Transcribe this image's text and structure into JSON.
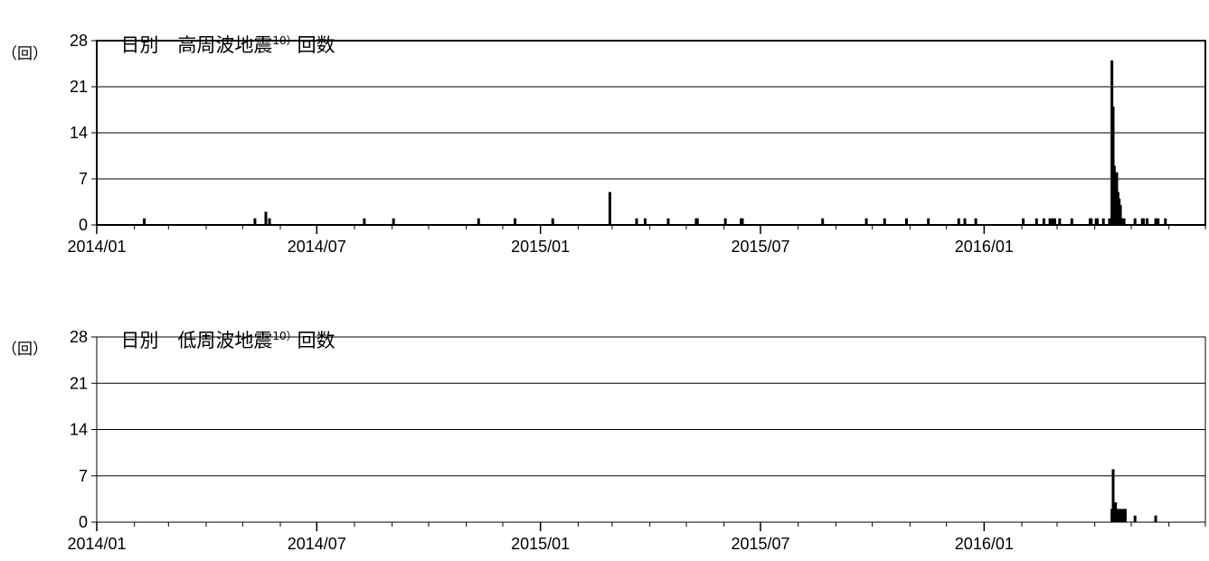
{
  "unit_label": "（回）",
  "chart_data": [
    {
      "type": "bar",
      "title": "日別　高周波地震",
      "title_ref": "10）",
      "title_suffix": "回数",
      "ylabel": "（回）",
      "ylim": [
        0,
        28
      ],
      "yticks": [
        "0",
        "7",
        "14",
        "21",
        "28"
      ],
      "xlim": [
        "2014-01-01",
        "2016-06-30"
      ],
      "xticks": [
        {
          "date": "2014-01-01",
          "label": "2014/01"
        },
        {
          "date": "2014-07-01",
          "label": "2014/07"
        },
        {
          "date": "2015-01-01",
          "label": "2015/01"
        },
        {
          "date": "2015-07-01",
          "label": "2015/07"
        },
        {
          "date": "2016-01-01",
          "label": "2016/01"
        }
      ],
      "grid": true,
      "x": [
        "2014-02-08",
        "2014-05-10",
        "2014-05-19",
        "2014-05-22",
        "2014-08-08",
        "2014-09-01",
        "2014-11-10",
        "2014-12-10",
        "2015-01-10",
        "2015-02-26",
        "2015-03-20",
        "2015-03-27",
        "2015-04-15",
        "2015-05-08",
        "2015-05-09",
        "2015-06-01",
        "2015-06-14",
        "2015-06-15",
        "2015-08-20",
        "2015-09-25",
        "2015-10-10",
        "2015-10-28",
        "2015-11-15",
        "2015-12-10",
        "2015-12-15",
        "2015-12-24",
        "2016-02-01",
        "2016-02-12",
        "2016-02-18",
        "2016-02-23",
        "2016-02-25",
        "2016-02-27",
        "2016-03-02",
        "2016-03-12",
        "2016-03-27",
        "2016-03-28",
        "2016-04-01",
        "2016-04-02",
        "2016-04-07",
        "2016-04-12",
        "2016-04-13",
        "2016-04-14",
        "2016-04-15",
        "2016-04-16",
        "2016-04-17",
        "2016-04-18",
        "2016-04-19",
        "2016-04-20",
        "2016-04-21",
        "2016-04-22",
        "2016-04-23",
        "2016-04-24",
        "2016-05-03",
        "2016-05-09",
        "2016-05-10",
        "2016-05-13",
        "2016-05-20",
        "2016-05-22",
        "2016-05-28"
      ],
      "values": [
        1,
        1,
        2,
        1,
        1,
        1,
        1,
        1,
        1,
        5,
        1,
        1,
        1,
        1,
        1,
        1,
        1,
        1,
        1,
        1,
        1,
        1,
        1,
        1,
        1,
        1,
        1,
        1,
        1,
        1,
        1,
        1,
        1,
        1,
        1,
        1,
        1,
        1,
        1,
        1,
        1,
        25,
        18,
        9,
        6,
        8,
        5,
        4,
        3,
        1,
        1,
        1,
        1,
        1,
        1,
        1,
        1,
        1,
        1
      ]
    },
    {
      "type": "bar",
      "title": "日別　低周波地震",
      "title_ref": "10）",
      "title_suffix": "回数",
      "ylabel": "（回）",
      "ylim": [
        0,
        28
      ],
      "yticks": [
        "0",
        "7",
        "14",
        "21",
        "28"
      ],
      "xlim": [
        "2014-01-01",
        "2016-06-30"
      ],
      "xticks": [
        {
          "date": "2014-01-01",
          "label": "2014/01"
        },
        {
          "date": "2014-07-01",
          "label": "2014/07"
        },
        {
          "date": "2015-01-01",
          "label": "2015/01"
        },
        {
          "date": "2015-07-01",
          "label": "2015/07"
        },
        {
          "date": "2016-01-01",
          "label": "2016/01"
        }
      ],
      "grid": true,
      "x": [
        "2016-04-14",
        "2016-04-15",
        "2016-04-17",
        "2016-04-18",
        "2016-04-19",
        "2016-04-20",
        "2016-04-21",
        "2016-04-22",
        "2016-04-23",
        "2016-04-24",
        "2016-04-25",
        "2016-05-03",
        "2016-05-20"
      ],
      "values": [
        2,
        8,
        3,
        2,
        1,
        2,
        1,
        2,
        1,
        2,
        2,
        1,
        1
      ]
    }
  ]
}
